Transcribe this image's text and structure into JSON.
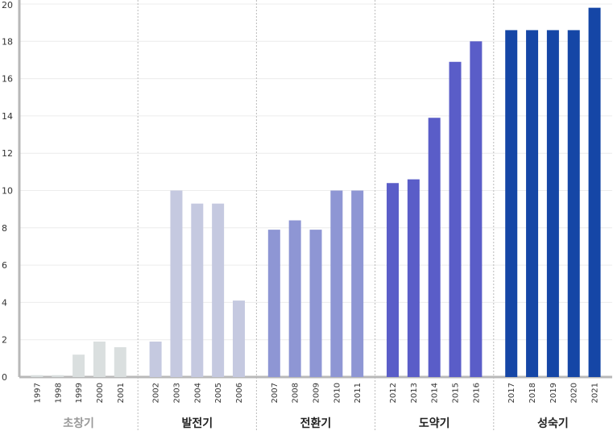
{
  "chart_data": {
    "type": "bar",
    "title": "",
    "xlabel": "",
    "ylabel": "",
    "ylim": [
      0,
      20
    ],
    "yticks": [
      0,
      2,
      4,
      6,
      8,
      10,
      12,
      14,
      16,
      18,
      20
    ],
    "grid": "horizontal",
    "groups": [
      {
        "name": "초창기",
        "color": "#dadfdf",
        "label_color": "#999999",
        "categories": [
          "1997",
          "1998",
          "1999",
          "2000",
          "2001"
        ],
        "values": [
          0.1,
          0.1,
          1.2,
          1.9,
          1.6
        ]
      },
      {
        "name": "발전기",
        "color": "#c5c9e0",
        "label_color": "#222222",
        "categories": [
          "2002",
          "2003",
          "2004",
          "2005",
          "2006"
        ],
        "values": [
          1.9,
          10.0,
          9.3,
          9.3,
          4.1
        ]
      },
      {
        "name": "전환기",
        "color": "#8e96d4",
        "label_color": "#222222",
        "categories": [
          "2007",
          "2008",
          "2009",
          "2010",
          "2011"
        ],
        "values": [
          7.9,
          8.4,
          7.9,
          10.0,
          10.0
        ]
      },
      {
        "name": "도약기",
        "color": "#5a5dc8",
        "label_color": "#222222",
        "categories": [
          "2012",
          "2013",
          "2014",
          "2015",
          "2016"
        ],
        "values": [
          10.4,
          10.6,
          13.9,
          16.9,
          18.0
        ]
      },
      {
        "name": "성숙기",
        "color": "#1546a6",
        "label_color": "#222222",
        "categories": [
          "2017",
          "2018",
          "2019",
          "2020",
          "2021"
        ],
        "values": [
          18.6,
          18.6,
          18.6,
          18.6,
          19.8
        ]
      }
    ]
  }
}
